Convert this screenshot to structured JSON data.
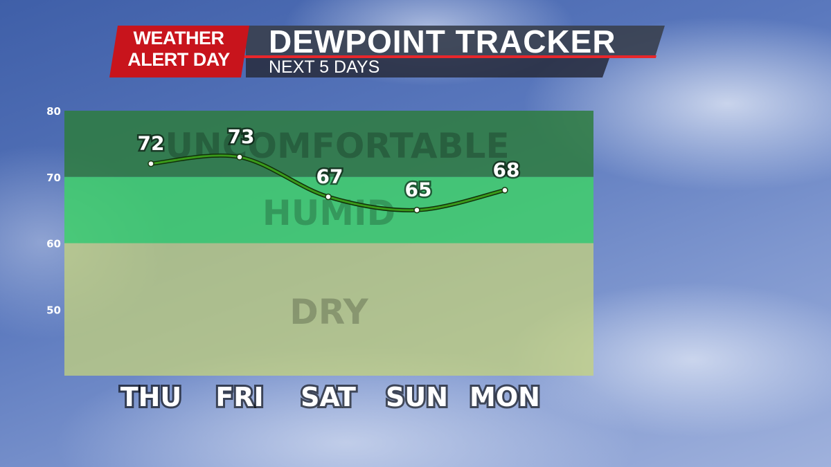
{
  "header": {
    "badge_line1": "WEATHER",
    "badge_line2": "ALERT DAY",
    "title": "DEWPOINT TRACKER",
    "subtitle": "NEXT 5 DAYS",
    "badge_color": "#c8141c",
    "accent_line_color": "#e8262b"
  },
  "chart_data": {
    "type": "line",
    "categories": [
      "THU",
      "FRI",
      "SAT",
      "SUN",
      "MON"
    ],
    "series": [
      {
        "values": [
          72,
          73,
          67,
          65,
          68
        ],
        "color": "#3a9a1a"
      }
    ],
    "data_labels": [
      "72",
      "73",
      "67",
      "65",
      "68"
    ],
    "ylim": [
      40,
      80
    ],
    "yticks": [
      "80",
      "70",
      "60",
      "50"
    ],
    "ytick_values": [
      80,
      70,
      60,
      50
    ],
    "bands": [
      {
        "label": "UNCOMFORTABLE",
        "from": 70,
        "to": 80,
        "color": "#2e7d3e"
      },
      {
        "label": "HUMID",
        "from": 60,
        "to": 70,
        "color": "#3fd06a"
      },
      {
        "label": "DRY",
        "from": 40,
        "to": 60,
        "color": "#c8d67a"
      }
    ],
    "grid": false,
    "title": "DEWPOINT TRACKER"
  }
}
